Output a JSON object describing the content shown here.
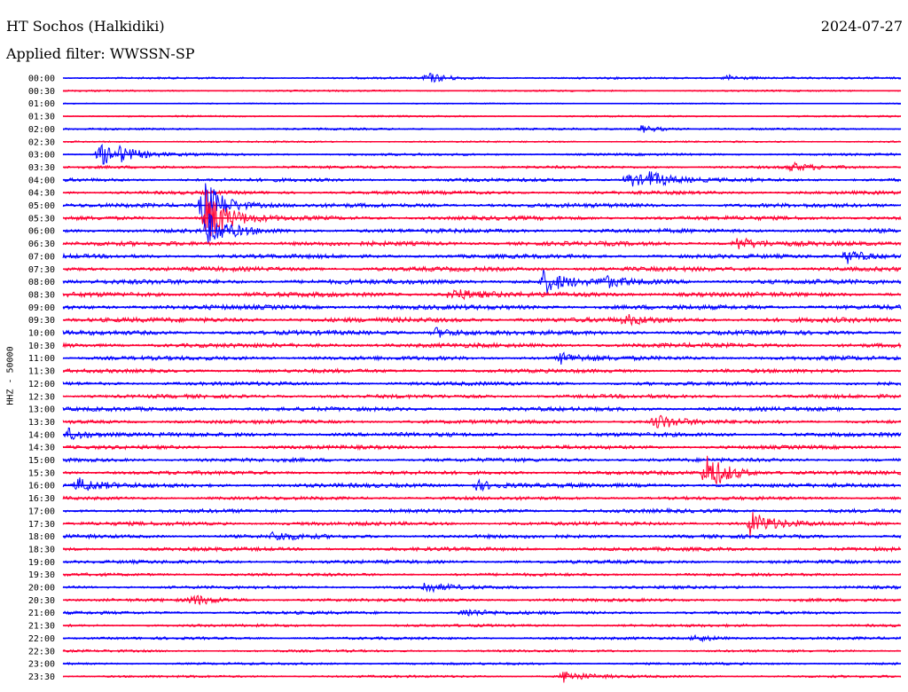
{
  "header": {
    "station": "HT Sochos (Halkidiki)",
    "date": "2024-07-27",
    "filter": "Applied filter: WWSSN-SP"
  },
  "channel_label": "HHZ - 50000",
  "colors": {
    "even_trace": "#0000ff",
    "odd_trace": "#ff0033"
  },
  "chart_data": {
    "type": "line",
    "title": "HT Sochos (Halkidiki)",
    "subtitle": "Applied filter: WWSSN-SP",
    "ylabel": "HHZ - 50000",
    "xlabel": "",
    "grid": false,
    "categories": [
      "00:00",
      "00:30",
      "01:00",
      "01:30",
      "02:00",
      "02:30",
      "03:00",
      "03:30",
      "04:00",
      "04:30",
      "05:00",
      "05:30",
      "06:00",
      "06:30",
      "07:00",
      "07:30",
      "08:00",
      "08:30",
      "09:00",
      "09:30",
      "10:00",
      "10:30",
      "11:00",
      "11:30",
      "12:00",
      "12:30",
      "13:00",
      "13:30",
      "14:00",
      "14:30",
      "15:00",
      "15:30",
      "16:00",
      "16:30",
      "17:00",
      "17:30",
      "18:00",
      "18:30",
      "19:00",
      "19:30",
      "20:00",
      "20:30",
      "21:00",
      "21:30",
      "22:00",
      "22:30",
      "23:00",
      "23:30"
    ],
    "xlim_minutes": [
      0,
      30
    ],
    "trace_noise": [
      1.2,
      1.0,
      0.7,
      1.0,
      1.2,
      1.0,
      1.4,
      1.6,
      2.0,
      2.0,
      2.4,
      2.4,
      2.4,
      2.6,
      2.4,
      2.6,
      2.8,
      2.8,
      2.8,
      2.8,
      2.6,
      2.6,
      2.4,
      2.2,
      2.2,
      2.2,
      2.4,
      2.2,
      2.4,
      2.2,
      2.2,
      2.2,
      2.4,
      2.0,
      2.2,
      2.2,
      2.2,
      2.2,
      2.0,
      1.8,
      1.8,
      1.8,
      1.8,
      1.6,
      1.6,
      1.4,
      1.4,
      1.4
    ],
    "events": [
      {
        "trace": "00:00",
        "minute": 13.0,
        "amplitude": 6
      },
      {
        "trace": "00:00",
        "minute": 23.7,
        "amplitude": 4
      },
      {
        "trace": "02:00",
        "minute": 20.7,
        "amplitude": 4
      },
      {
        "trace": "03:00",
        "minute": 1.3,
        "amplitude": 14
      },
      {
        "trace": "03:00",
        "minute": 2.0,
        "amplitude": 5
      },
      {
        "trace": "03:30",
        "minute": 26.0,
        "amplitude": 5
      },
      {
        "trace": "04:00",
        "minute": 20.2,
        "amplitude": 9
      },
      {
        "trace": "04:00",
        "minute": 21.0,
        "amplitude": 7
      },
      {
        "trace": "05:00",
        "minute": 5.0,
        "amplitude": 30
      },
      {
        "trace": "05:30",
        "minute": 5.1,
        "amplitude": 32
      },
      {
        "trace": "06:00",
        "minute": 5.2,
        "amplitude": 18
      },
      {
        "trace": "06:30",
        "minute": 24.1,
        "amplitude": 7
      },
      {
        "trace": "07:00",
        "minute": 28.0,
        "amplitude": 9
      },
      {
        "trace": "08:00",
        "minute": 17.2,
        "amplitude": 13
      },
      {
        "trace": "08:00",
        "minute": 19.3,
        "amplitude": 6
      },
      {
        "trace": "08:30",
        "minute": 13.9,
        "amplitude": 7
      },
      {
        "trace": "09:30",
        "minute": 20.1,
        "amplitude": 5
      },
      {
        "trace": "10:00",
        "minute": 13.3,
        "amplitude": 6
      },
      {
        "trace": "11:00",
        "minute": 17.8,
        "amplitude": 6
      },
      {
        "trace": "13:30",
        "minute": 21.2,
        "amplitude": 9
      },
      {
        "trace": "14:00",
        "minute": 0.2,
        "amplitude": 7
      },
      {
        "trace": "15:30",
        "minute": 23.0,
        "amplitude": 22
      },
      {
        "trace": "16:00",
        "minute": 0.5,
        "amplitude": 8
      },
      {
        "trace": "16:00",
        "minute": 14.8,
        "amplitude": 6
      },
      {
        "trace": "17:30",
        "minute": 24.6,
        "amplitude": 14
      },
      {
        "trace": "18:00",
        "minute": 7.5,
        "amplitude": 5
      },
      {
        "trace": "20:00",
        "minute": 12.9,
        "amplitude": 6
      },
      {
        "trace": "20:30",
        "minute": 4.6,
        "amplitude": 6
      },
      {
        "trace": "21:00",
        "minute": 14.3,
        "amplitude": 5
      },
      {
        "trace": "22:00",
        "minute": 22.6,
        "amplitude": 4
      },
      {
        "trace": "23:30",
        "minute": 17.9,
        "amplitude": 7
      }
    ]
  }
}
